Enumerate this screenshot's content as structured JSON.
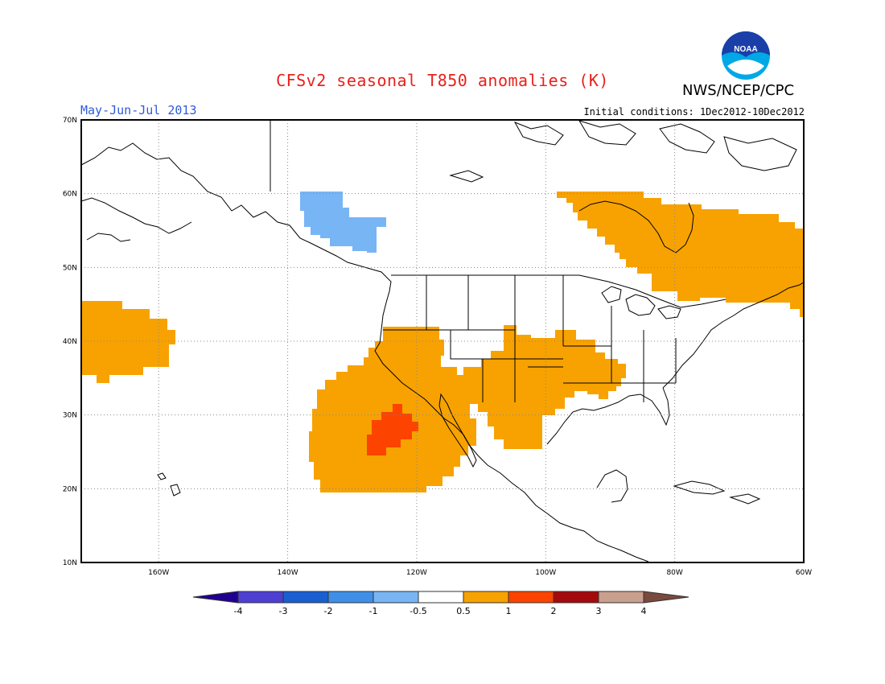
{
  "header": {
    "title": "CFSv2 seasonal T850 anomalies (K)",
    "agency": "NWS/NCEP/CPC",
    "period": "May-Jun-Jul 2013",
    "initial_conditions": "Initial conditions: 1Dec2012-10Dec2012",
    "logo_text": "NOAA"
  },
  "map": {
    "lon_range": [
      -172,
      -60
    ],
    "lat_range": [
      10,
      70
    ],
    "lon_ticks": [
      "160W",
      "140W",
      "120W",
      "100W",
      "80W",
      "60W"
    ],
    "lat_ticks": [
      "10N",
      "20N",
      "30N",
      "40N",
      "50N",
      "60N",
      "70N"
    ],
    "grid": "dotted",
    "anomaly_regions": [
      {
        "name": "alaska-panhandle",
        "category": "-1 to -0.5"
      },
      {
        "name": "eastern-canada",
        "category": "0.5 to 1"
      },
      {
        "name": "northeast-pacific",
        "category": "0.5 to 1"
      },
      {
        "name": "baja-eastern-pacific",
        "category": "0.5 to 1"
      },
      {
        "name": "baja-core",
        "category": "1 to 2"
      },
      {
        "name": "southwest-central-us",
        "category": "0.5 to 1"
      }
    ]
  },
  "legend": {
    "labels": [
      "-4",
      "-3",
      "-2",
      "-1",
      "-0.5",
      "0.5",
      "1",
      "2",
      "3",
      "4"
    ],
    "colors": [
      "#200090",
      "#4e3fd3",
      "#1a5fd1",
      "#3f8fe8",
      "#78b5f5",
      "#ffffff",
      "#f7a200",
      "#fc4300",
      "#a40a0c",
      "#c9a08e",
      "#7a4a3e"
    ]
  }
}
